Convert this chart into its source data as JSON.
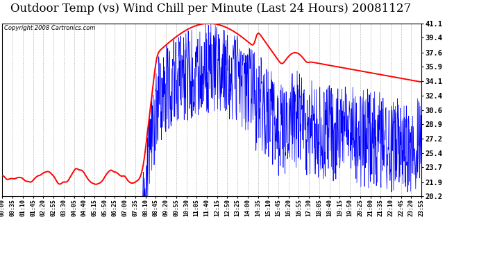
{
  "title": "Outdoor Temp (vs) Wind Chill per Minute (Last 24 Hours) 20081127",
  "copyright_text": "Copyright 2008 Cartronics.com",
  "yticks": [
    20.2,
    21.9,
    23.7,
    25.4,
    27.2,
    28.9,
    30.6,
    32.4,
    34.1,
    35.9,
    37.6,
    39.4,
    41.1
  ],
  "ylim": [
    20.2,
    41.1
  ],
  "bg_color": "#ffffff",
  "plot_bg_color": "#ffffff",
  "grid_color": "#bbbbbb",
  "title_fontsize": 12,
  "red_color": "#ff0000",
  "blue_color": "#0000ff",
  "xtick_labels": [
    "00:00",
    "00:35",
    "01:10",
    "01:45",
    "02:20",
    "02:55",
    "03:30",
    "04:05",
    "04:40",
    "05:15",
    "05:50",
    "06:25",
    "07:00",
    "07:35",
    "08:10",
    "08:45",
    "09:20",
    "09:55",
    "10:30",
    "11:05",
    "11:40",
    "12:15",
    "12:50",
    "13:25",
    "14:00",
    "14:35",
    "15:10",
    "15:45",
    "16:20",
    "16:55",
    "17:30",
    "18:05",
    "18:40",
    "19:15",
    "19:50",
    "20:25",
    "21:00",
    "21:35",
    "22:10",
    "22:45",
    "23:20",
    "23:55"
  ],
  "n_points": 1440
}
